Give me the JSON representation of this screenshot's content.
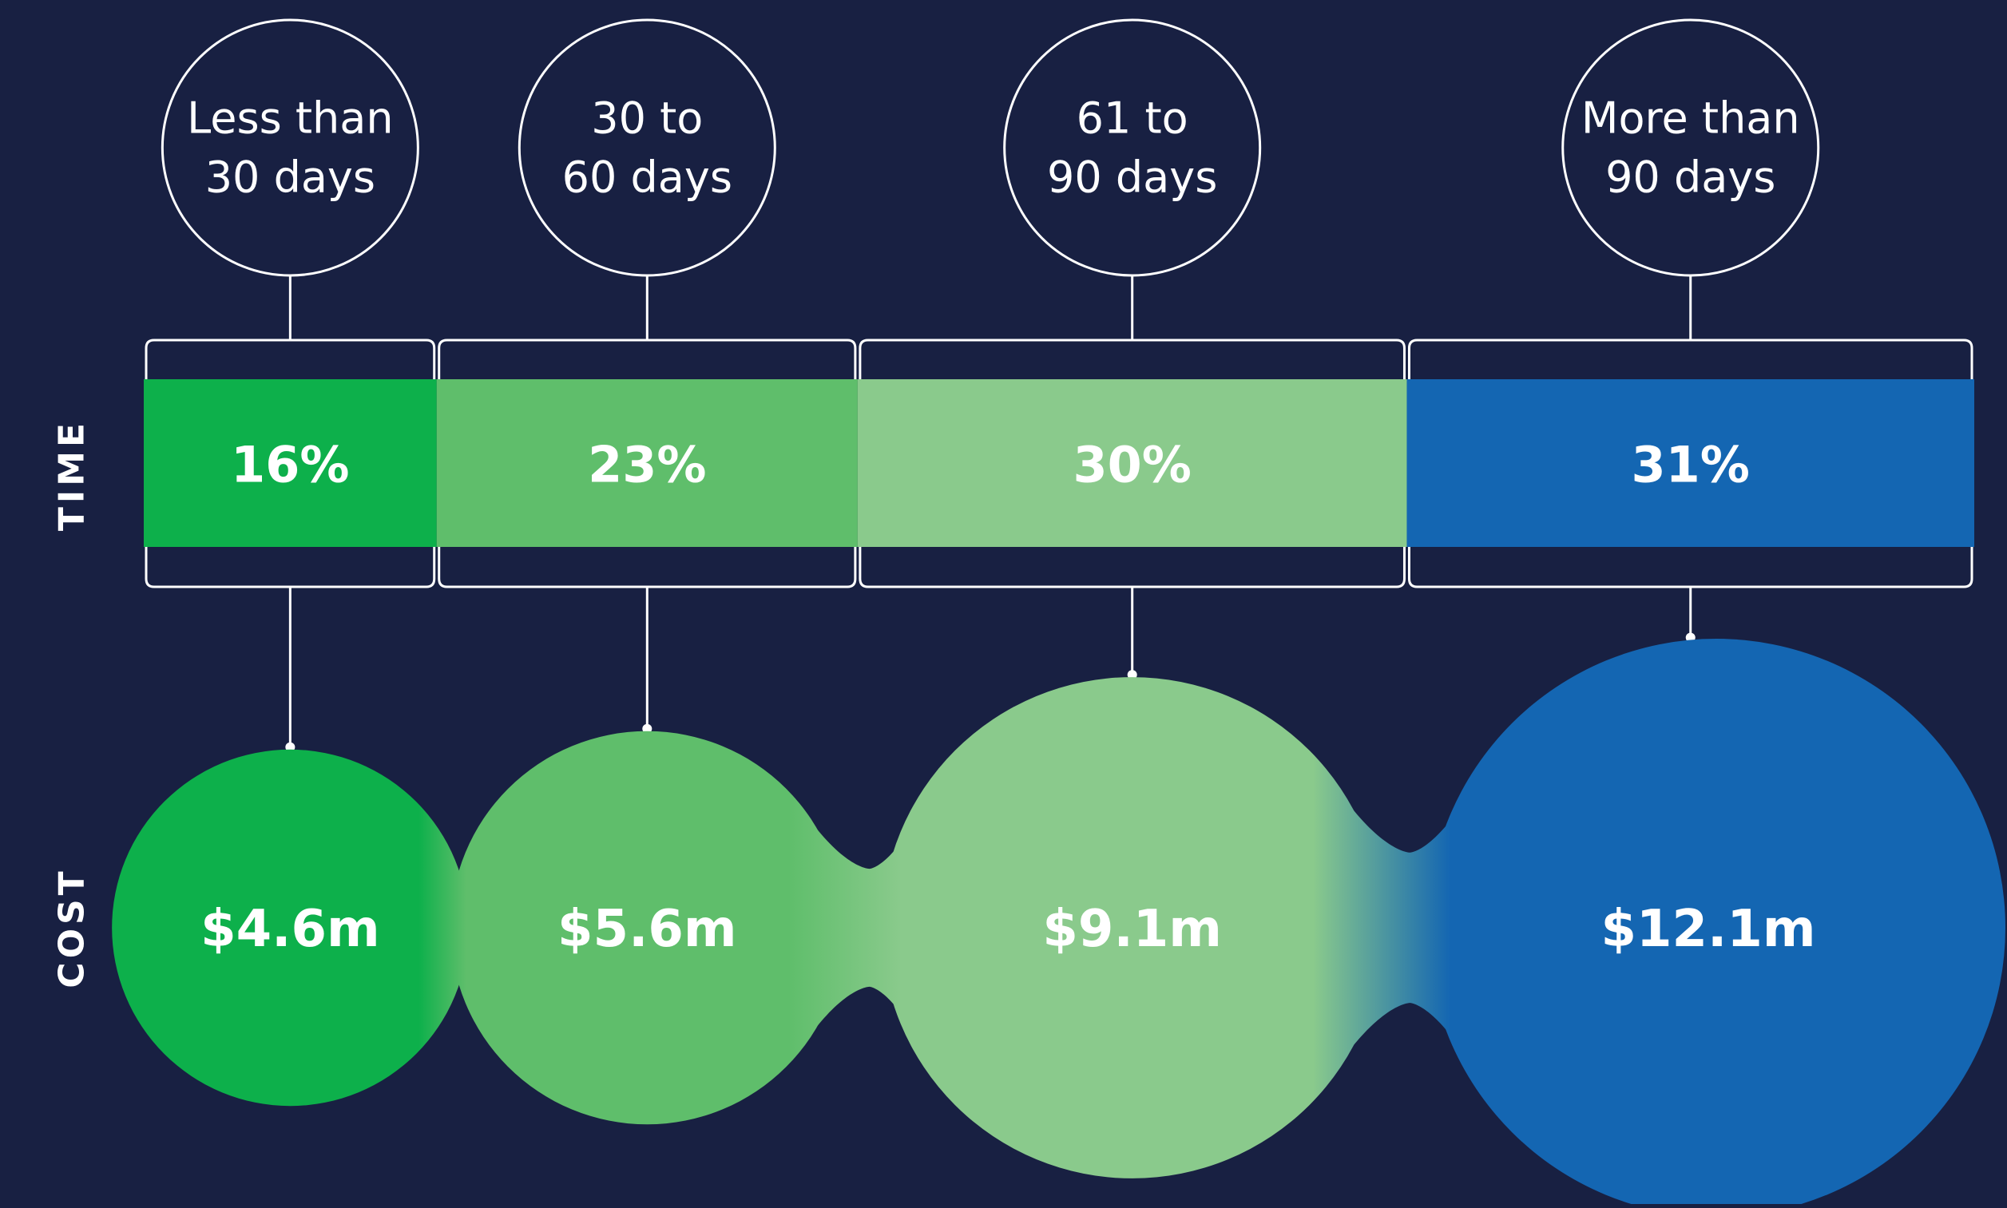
{
  "chart_data": {
    "type": "bar",
    "categories": [
      [
        "Less than",
        "30 days"
      ],
      [
        "30 to",
        "60 days"
      ],
      [
        "61 to",
        "90 days"
      ],
      [
        "More than",
        "90 days"
      ]
    ],
    "series": [
      {
        "name": "TIME",
        "values": [
          16,
          23,
          30,
          31
        ],
        "labels": [
          "16%",
          "23%",
          "30%",
          "31%"
        ]
      },
      {
        "name": "COST",
        "values": [
          4.6,
          5.6,
          9.1,
          12.1
        ],
        "labels": [
          "$4.6m",
          "$5.6m",
          "$9.1m",
          "$12.1m"
        ]
      }
    ],
    "row_labels": {
      "time": "TIME",
      "cost": "COST"
    },
    "colors": [
      "#0db04b",
      "#5fbe6b",
      "#8aca8c",
      "#1466b2"
    ],
    "background": "#182042",
    "outline_color": "#ffffff"
  }
}
